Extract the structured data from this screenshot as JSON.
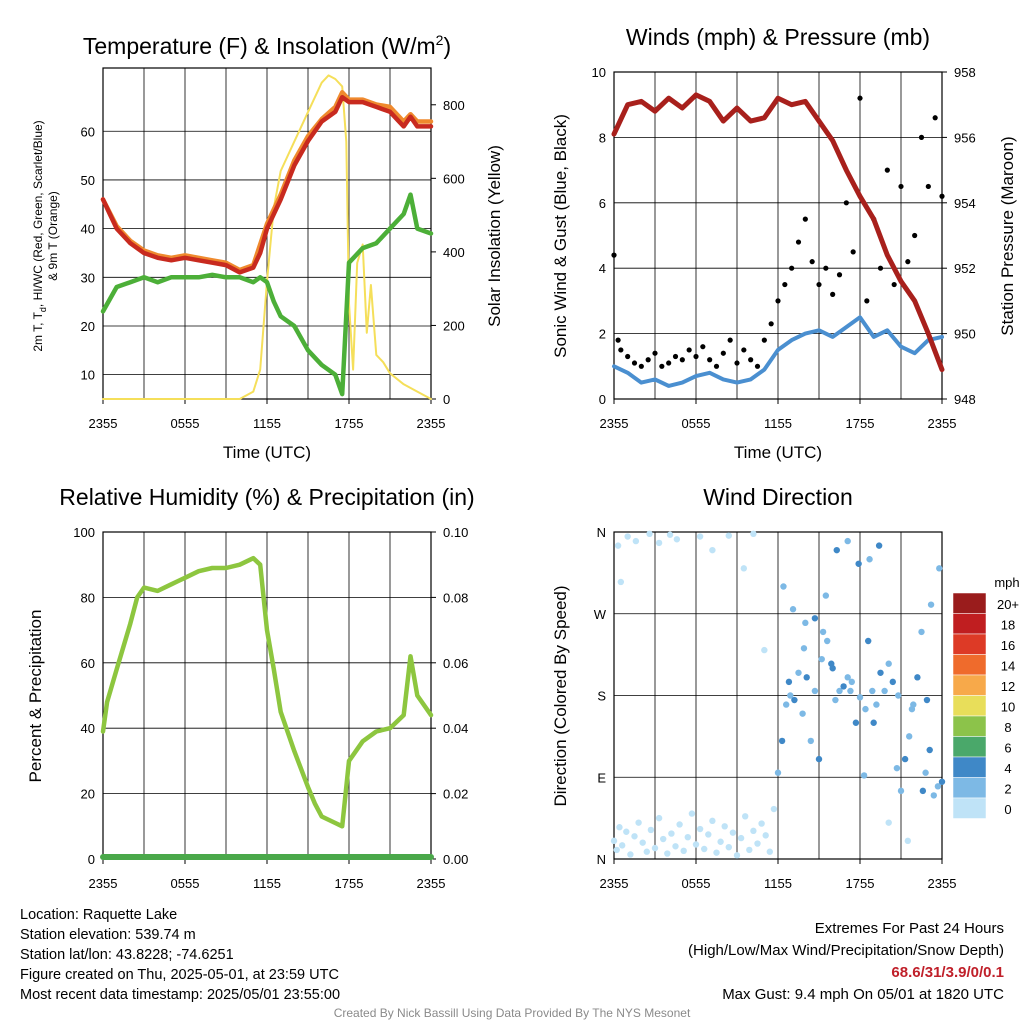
{
  "panels": {
    "temp": {
      "title": "Temperature (F) & Insolation (W/m",
      "title_sup": "2",
      "title_end": ")",
      "ylabel_line1": "2m T, T",
      "ylabel_sub": "d",
      "ylabel_line1_end": ", HI/WC (Red, Green, Scarlet/Blue)",
      "ylabel_line2": "& 9m T (Orange)",
      "y2label": "Solar Insolation (Yellow)",
      "xlabel": "Time (UTC)"
    },
    "wind": {
      "title": "Winds (mph) & Pressure (mb)",
      "ylabel": "Sonic Wind & Gust (Blue, Black)",
      "y2label": "Station Pressure (Maroon)",
      "xlabel": "Time (UTC)"
    },
    "rh": {
      "title": "Relative Humidity (%) & Precipitation (in)",
      "ylabel": "Percent & Precipitation"
    },
    "dir": {
      "title": "Wind Direction",
      "ylabel": "Direction (Colored By Speed)",
      "legend_title": "mph"
    }
  },
  "colors": {
    "temp_red": "#c82a1f",
    "temp_orange": "#ef8a2e",
    "dewpoint_green": "#4caf38",
    "insolation_yellow": "#f5df5a",
    "wind_blue": "#4a8fd0",
    "gust_black": "#000000",
    "pressure_maroon": "#a8201c",
    "rh_green": "#8dc63f",
    "precip_green": "#4aa84a"
  },
  "chart_data": [
    {
      "type": "line",
      "title": "Temperature (F) & Insolation (W/m2)",
      "xlabel": "Time (UTC)",
      "ylabel": "2m T, Td, HI/WC (Red, Green, Scarlet/Blue) & 9m T (Orange)",
      "y2label": "Solar Insolation (Yellow)",
      "x_ticks": [
        "2355",
        "0555",
        "1155",
        "1755",
        "2355"
      ],
      "x_range_hours": [
        0,
        24
      ],
      "ylim": [
        5,
        73
      ],
      "y_ticks": [
        10,
        20,
        30,
        40,
        50,
        60
      ],
      "y2lim": [
        0,
        900
      ],
      "y2_ticks": [
        0,
        200,
        400,
        600,
        800
      ],
      "grid": true,
      "series": [
        {
          "name": "2m T",
          "color": "#c82a1f",
          "axis": "left",
          "x": [
            0,
            0.5,
            1,
            2,
            3,
            4,
            5,
            6,
            7,
            8,
            9,
            10,
            11,
            11.5,
            12,
            13,
            14,
            15,
            16,
            17,
            17.5,
            18,
            19,
            20,
            21,
            22,
            22.5,
            23,
            24
          ],
          "y": [
            46,
            43,
            40,
            37,
            35,
            34,
            33.5,
            34,
            33.5,
            33,
            32.5,
            31,
            32,
            35,
            40,
            46,
            53,
            58,
            62,
            64,
            67,
            66,
            66,
            65,
            64,
            61,
            63,
            61,
            61
          ]
        },
        {
          "name": "9m T",
          "color": "#ef8a2e",
          "axis": "left",
          "x": [
            0,
            1,
            2,
            3,
            4,
            5,
            6,
            7,
            8,
            9,
            10,
            11,
            12,
            13,
            14,
            15,
            16,
            17,
            17.5,
            18,
            19,
            20,
            21,
            22,
            22.5,
            23,
            24
          ],
          "y": [
            46,
            40.5,
            37.5,
            35.5,
            34.5,
            34,
            34.5,
            34,
            33.5,
            33,
            31.5,
            32.5,
            41,
            47,
            54,
            59,
            62.5,
            65,
            68,
            66.5,
            66.5,
            65.5,
            65,
            62,
            63.5,
            62,
            62
          ]
        },
        {
          "name": "Td",
          "color": "#4caf38",
          "axis": "left",
          "x": [
            0,
            1,
            2,
            3,
            4,
            5,
            6,
            7,
            8,
            9,
            10,
            11,
            11.5,
            12,
            12.5,
            13,
            14,
            15,
            16,
            17,
            17.5,
            18,
            19,
            20,
            21,
            22,
            22.5,
            23,
            24
          ],
          "y": [
            23,
            28,
            29,
            30,
            29,
            30,
            30,
            30,
            30.5,
            30,
            30,
            29,
            30,
            29,
            25,
            22,
            20,
            15,
            12,
            10,
            6,
            33,
            36,
            37,
            40,
            43,
            47,
            40,
            39
          ]
        },
        {
          "name": "Insolation",
          "color": "#f5df5a",
          "axis": "right",
          "x": [
            0,
            2,
            4,
            6,
            8,
            10,
            11,
            11.5,
            12,
            12.5,
            13,
            14,
            15,
            15.5,
            16,
            16.5,
            17,
            17.5,
            17.8,
            18,
            18.3,
            18.6,
            19,
            19.3,
            19.6,
            20,
            20.5,
            21,
            22,
            23,
            24
          ],
          "y": [
            0,
            0,
            0,
            0,
            0,
            0,
            20,
            80,
            320,
            520,
            620,
            700,
            780,
            820,
            860,
            880,
            870,
            850,
            700,
            260,
            80,
            370,
            420,
            180,
            310,
            120,
            100,
            70,
            40,
            20,
            0
          ]
        }
      ]
    },
    {
      "type": "line",
      "title": "Winds (mph) & Pressure (mb)",
      "xlabel": "Time (UTC)",
      "ylabel": "Sonic Wind & Gust (Blue, Black)",
      "y2label": "Station Pressure (Maroon)",
      "x_ticks": [
        "2355",
        "0555",
        "1155",
        "1755",
        "2355"
      ],
      "x_range_hours": [
        0,
        24
      ],
      "ylim": [
        0,
        10
      ],
      "y_ticks": [
        0,
        2,
        4,
        6,
        8,
        10
      ],
      "y2lim": [
        948,
        958
      ],
      "y2_ticks": [
        948,
        950,
        952,
        954,
        956,
        958
      ],
      "grid": true,
      "series": [
        {
          "name": "Sonic Wind",
          "color": "#4a8fd0",
          "axis": "left",
          "x": [
            0,
            1,
            2,
            3,
            4,
            5,
            6,
            7,
            8,
            9,
            10,
            11,
            12,
            13,
            14,
            15,
            16,
            17,
            18,
            19,
            20,
            21,
            22,
            23,
            24
          ],
          "y": [
            1,
            0.8,
            0.5,
            0.6,
            0.4,
            0.5,
            0.7,
            0.8,
            0.6,
            0.5,
            0.6,
            0.9,
            1.5,
            1.8,
            2.0,
            2.1,
            1.9,
            2.2,
            2.5,
            1.9,
            2.1,
            1.6,
            1.4,
            1.8,
            1.9
          ]
        },
        {
          "name": "Gust",
          "color": "#000000",
          "axis": "left",
          "style": "points",
          "x": [
            0,
            0.3,
            0.5,
            1,
            1.5,
            2,
            2.5,
            3,
            3.5,
            4,
            4.5,
            5,
            5.5,
            6,
            6.5,
            7,
            7.5,
            8,
            8.5,
            9,
            9.5,
            10,
            10.5,
            11,
            11.5,
            12,
            12.5,
            13,
            13.5,
            14,
            14.5,
            15,
            15.5,
            16,
            16.5,
            17,
            17.5,
            18,
            18.5,
            19,
            19.5,
            20,
            20.5,
            21,
            21.5,
            22,
            22.5,
            23,
            23.5,
            24
          ],
          "y": [
            4.4,
            1.8,
            1.5,
            1.3,
            1.1,
            1.0,
            1.2,
            1.4,
            1.0,
            1.1,
            1.3,
            1.2,
            1.5,
            1.3,
            1.6,
            1.2,
            1.0,
            1.4,
            1.8,
            1.1,
            1.5,
            1.2,
            1.0,
            1.8,
            2.3,
            3.0,
            3.5,
            4.0,
            4.8,
            5.5,
            4.2,
            3.5,
            4.0,
            3.2,
            3.8,
            6.0,
            4.5,
            9.2,
            3.0,
            5.5,
            4.0,
            7.0,
            3.5,
            6.5,
            4.2,
            5.0,
            8.0,
            6.5,
            8.6,
            6.2
          ]
        },
        {
          "name": "Station Pressure",
          "color": "#a8201c",
          "axis": "right",
          "x": [
            0,
            1,
            2,
            3,
            4,
            5,
            6,
            7,
            8,
            9,
            10,
            11,
            12,
            13,
            14,
            15,
            16,
            17,
            18,
            19,
            20,
            21,
            22,
            23,
            24
          ],
          "y": [
            956.1,
            957.0,
            957.1,
            956.8,
            957.2,
            956.9,
            957.3,
            957.1,
            956.5,
            956.9,
            956.5,
            956.6,
            957.2,
            957.0,
            957.1,
            956.5,
            955.9,
            955.0,
            954.2,
            953.5,
            952.4,
            951.6,
            951.0,
            950.0,
            948.9
          ]
        }
      ]
    },
    {
      "type": "line",
      "title": "Relative Humidity (%) & Precipitation (in)",
      "ylabel": "Percent & Precipitation",
      "x_ticks": [
        "2355",
        "0555",
        "1155",
        "1755",
        "2355"
      ],
      "x_range_hours": [
        0,
        24
      ],
      "ylim": [
        0,
        100
      ],
      "y_ticks": [
        0,
        20,
        40,
        60,
        80,
        100
      ],
      "y2lim": [
        0,
        0.1
      ],
      "y2_ticks": [
        "0.00",
        "0.02",
        "0.04",
        "0.06",
        "0.08",
        "0.10"
      ],
      "grid": true,
      "series": [
        {
          "name": "Relative Humidity",
          "color": "#8dc63f",
          "axis": "left",
          "x": [
            0,
            0.3,
            1,
            2,
            2.5,
            3,
            4,
            5,
            5.5,
            6,
            7,
            8,
            9,
            10,
            11,
            11.5,
            12,
            12.5,
            13,
            14,
            15,
            15.5,
            16,
            17,
            17.5,
            18,
            19,
            20,
            21,
            22,
            22.5,
            23,
            24
          ],
          "y": [
            39,
            48,
            58,
            72,
            80,
            83,
            82,
            84,
            85,
            86,
            88,
            89,
            89,
            90,
            92,
            90,
            70,
            58,
            45,
            33,
            22,
            17,
            13,
            11,
            10,
            30,
            36,
            39,
            40,
            44,
            62,
            50,
            44
          ]
        },
        {
          "name": "Precipitation",
          "color": "#4aa84a",
          "axis": "right",
          "x": [
            0,
            24
          ],
          "y": [
            0,
            0
          ]
        }
      ]
    },
    {
      "type": "scatter",
      "title": "Wind Direction",
      "ylabel": "Direction (Colored By Speed)",
      "x_ticks": [
        "2355",
        "0555",
        "1155",
        "1755",
        "2355"
      ],
      "x_range_hours": [
        0,
        24
      ],
      "y_ticks": [
        "N",
        "E",
        "S",
        "W",
        "N"
      ],
      "ylim_degrees": [
        0,
        360
      ],
      "grid": true,
      "legend_title": "mph",
      "color_scale": [
        {
          "label": "20+",
          "color": "#9a1c1c"
        },
        {
          "label": "18",
          "color": "#c01e20"
        },
        {
          "label": "16",
          "color": "#dd3a26"
        },
        {
          "label": "14",
          "color": "#ef6b2c"
        },
        {
          "label": "12",
          "color": "#f7a94a"
        },
        {
          "label": "10",
          "color": "#e8de5a"
        },
        {
          "label": "8",
          "color": "#8cc34a"
        },
        {
          "label": "6",
          "color": "#4aa86a"
        },
        {
          "label": "4",
          "color": "#3f88c7"
        },
        {
          "label": "2",
          "color": "#7db9e5"
        },
        {
          "label": "0",
          "color": "#bfe3f7"
        }
      ],
      "series": [
        {
          "name": "Direction",
          "style": "points",
          "x": [
            0,
            0.2,
            0.4,
            0.6,
            0.9,
            1.2,
            1.5,
            1.8,
            2.1,
            2.4,
            2.7,
            3.0,
            3.3,
            3.6,
            3.9,
            4.2,
            4.5,
            4.8,
            5.1,
            5.4,
            5.7,
            6.0,
            6.3,
            6.6,
            6.9,
            7.2,
            7.5,
            7.8,
            8.1,
            8.4,
            8.7,
            9.0,
            9.3,
            9.6,
            9.9,
            10.2,
            10.5,
            10.8,
            11.1,
            11.4,
            11.7,
            12.0,
            12.3,
            12.6,
            12.9,
            13.2,
            13.5,
            13.8,
            14.1,
            14.4,
            14.7,
            15.0,
            15.3,
            15.6,
            15.9,
            16.2,
            16.5,
            16.8,
            17.1,
            17.4,
            17.7,
            18.0,
            18.3,
            18.6,
            18.9,
            19.2,
            19.5,
            19.8,
            20.1,
            20.4,
            20.7,
            21.0,
            21.3,
            21.6,
            21.9,
            22.2,
            22.5,
            22.8,
            23.1,
            23.4,
            23.7,
            24.0,
            0.3,
            1.0,
            1.6,
            4.1,
            6.3,
            2.6,
            4.6,
            8.4,
            10.2,
            0.5,
            3.3,
            7.2,
            9.5,
            11.0,
            12.4,
            13.1,
            14.0,
            14.7,
            15.5,
            16.3,
            17.1,
            17.9,
            18.7,
            19.4,
            20.1,
            21.5,
            22.6,
            23.2,
            23.8,
            12.8,
            13.9,
            15.2,
            16.0,
            17.3,
            18.4,
            19.0,
            20.8,
            21.8,
            22.9
          ],
          "y": [
            20,
            10,
            35,
            15,
            30,
            5,
            25,
            40,
            18,
            8,
            32,
            12,
            45,
            22,
            6,
            28,
            14,
            38,
            9,
            24,
            50,
            16,
            33,
            11,
            27,
            42,
            7,
            19,
            36,
            13,
            29,
            4,
            23,
            47,
            10,
            31,
            17,
            39,
            26,
            8,
            55,
            95,
            130,
            170,
            180,
            175,
            205,
            160,
            200,
            130,
            185,
            110,
            250,
            240,
            215,
            175,
            185,
            190,
            200,
            195,
            150,
            178,
            92,
            240,
            185,
            170,
            205,
            185,
            215,
            195,
            100,
            75,
            110,
            135,
            170,
            200,
            250,
            95,
            120,
            70,
            80,
            85,
            345,
            355,
            350,
            357,
            355,
            358,
            352,
            356,
            358,
            305,
            348,
            340,
            320,
            230,
            300,
            275,
            260,
            265,
            290,
            340,
            350,
            325,
            330,
            345,
            40,
            20,
            75,
            280,
            320,
            195,
            232,
            220,
            210,
            185,
            165,
            150,
            180,
            165,
            175
          ]
        }
      ]
    }
  ],
  "info": {
    "location": "Location: Raquette Lake",
    "elevation": "Station elevation: 539.74 m",
    "latlon": "Station lat/lon: 43.8228; -74.6251",
    "created": "Figure created on Thu, 2025-05-01, at 23:59 UTC",
    "recent": "Most recent data timestamp: 2025/05/01 23:55:00"
  },
  "extremes": {
    "line1": "Extremes For Past 24 Hours",
    "line2": "(High/Low/Max Wind/Precipitation/Snow Depth)",
    "values": "68.6/31/3.9/0/0.1",
    "gust": "Max Gust: 9.4 mph On 05/01 at 1820 UTC"
  },
  "credit": "Created By Nick Bassill Using Data Provided By The NYS Mesonet"
}
